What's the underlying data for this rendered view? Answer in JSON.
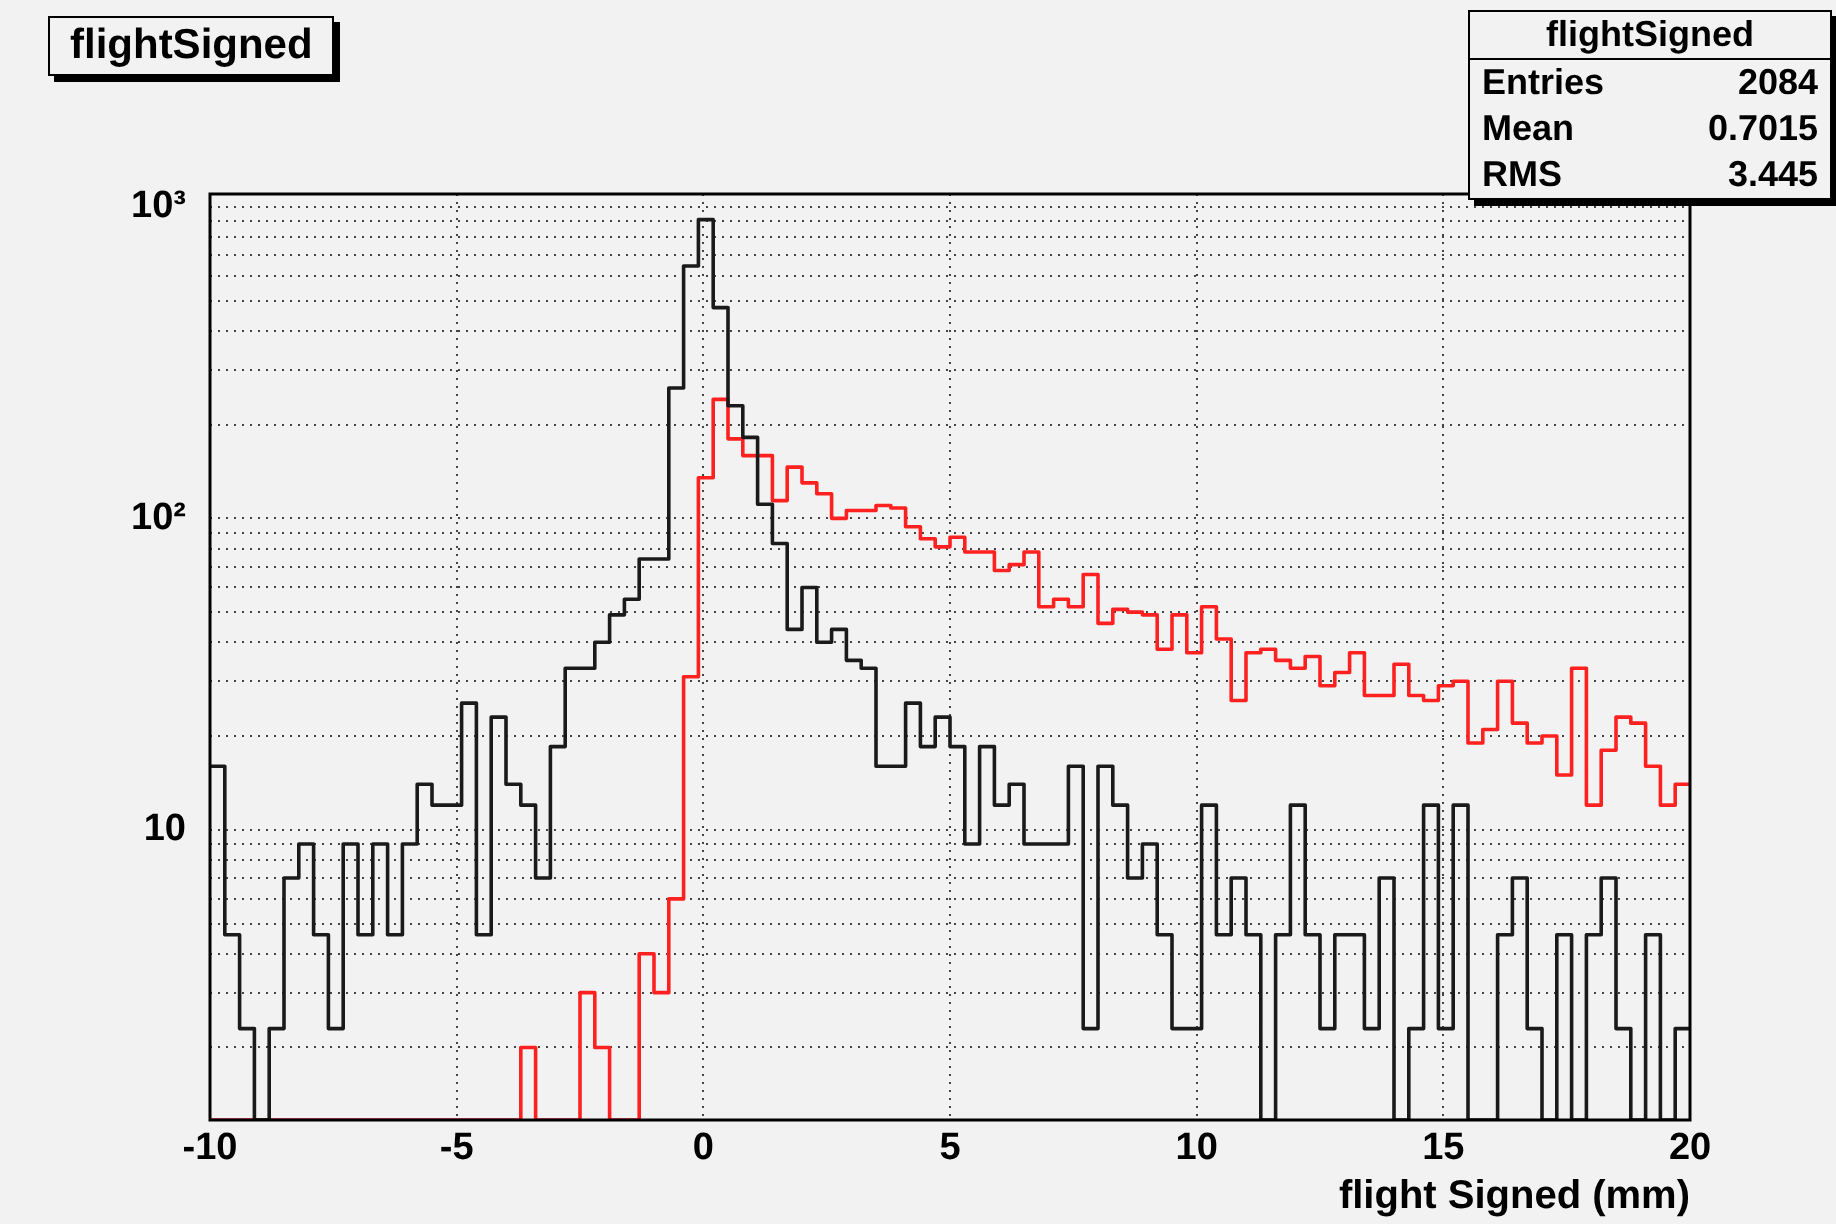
{
  "chart_data": {
    "type": "histogram",
    "title": "flightSigned",
    "xlabel": "flight Signed (mm)",
    "annotations": [
      "flightSigned",
      "Entries 2084",
      "Mean 0.7015",
      "RMS 3.445"
    ],
    "bins": [
      -10,
      -9.7,
      -9.4,
      -9.1,
      -8.8,
      -8.5,
      -8.2,
      -7.9,
      -7.6,
      -7.3,
      -7,
      -6.7,
      -6.4,
      -6.1,
      -5.8,
      -5.5,
      -5.2,
      -4.9,
      -4.6,
      -4.3,
      -4,
      -3.7,
      -3.4,
      -3.1,
      -2.8,
      -2.5,
      -2.2,
      -1.9,
      -1.6,
      -1.3,
      -1,
      -0.7,
      -0.4,
      -0.1,
      0.2,
      0.5,
      0.8,
      1.1,
      1.4,
      1.7,
      2,
      2.3,
      2.6,
      2.9,
      3.2,
      3.5,
      3.8,
      4.1,
      4.4,
      4.7,
      5,
      5.3,
      5.6,
      5.9,
      6.2,
      6.5,
      6.8,
      7.1,
      7.4,
      7.7,
      8,
      8.3,
      8.6,
      8.9,
      9.2,
      9.5,
      9.8,
      10.1,
      10.4,
      10.7,
      11,
      11.3,
      11.6,
      11.9,
      12.2,
      12.5,
      12.8,
      13.1,
      13.4,
      13.7,
      14,
      14.3,
      14.6,
      14.9,
      15.2,
      15.5,
      15.8,
      16.1,
      16.4,
      16.7,
      17,
      17.3,
      17.6,
      17.9,
      18.2,
      18.5,
      18.8,
      19.1,
      19.4,
      19.7,
      20
    ],
    "series": [
      {
        "color": "#1a1a1a",
        "values": [
          16,
          4.6,
          2.3,
          null,
          2.3,
          7,
          9,
          4.6,
          2.3,
          9,
          4.6,
          9,
          4.6,
          9,
          14,
          12,
          12,
          25.5,
          4.6,
          23,
          14,
          12,
          7,
          18.5,
          33,
          33,
          40,
          49,
          55,
          74,
          74,
          262,
          646,
          910,
          475,
          230,
          182,
          111,
          83,
          44,
          60,
          40,
          44,
          35,
          33,
          16,
          16,
          25.5,
          18.5,
          23,
          18.5,
          9,
          18.5,
          12,
          14,
          9,
          9,
          9,
          16,
          2.3,
          16,
          12,
          7,
          9,
          4.6,
          2.3,
          2.3,
          12,
          4.6,
          7,
          4.6,
          null,
          4.6,
          12,
          4.6,
          2.3,
          4.6,
          4.6,
          2.3,
          7,
          null,
          2.3,
          12,
          2.3,
          12,
          null,
          null,
          4.6,
          7,
          2.3,
          null,
          4.6,
          null,
          4.6,
          7,
          2.3,
          null,
          4.6,
          null,
          2.3
        ]
      },
      {
        "color": "#ff2020",
        "values": [
          null,
          null,
          null,
          null,
          null,
          null,
          null,
          null,
          null,
          null,
          null,
          null,
          null,
          null,
          null,
          null,
          null,
          null,
          null,
          null,
          null,
          2,
          null,
          null,
          null,
          3,
          2,
          null,
          null,
          4,
          3,
          6,
          31,
          135,
          241,
          180,
          159,
          159,
          114,
          146,
          130,
          120,
          100,
          106,
          106,
          110,
          108,
          94,
          86,
          81,
          87,
          78,
          78,
          68,
          71,
          78,
          52,
          55,
          52,
          66,
          46,
          51,
          50,
          49,
          38,
          49,
          37,
          52,
          41,
          26,
          37,
          38,
          35,
          33,
          36,
          29,
          32,
          37,
          27,
          27,
          34,
          27,
          26,
          29,
          30,
          19,
          21,
          30,
          22,
          19,
          20,
          15,
          33,
          12,
          18,
          23,
          22,
          16,
          12,
          14
        ]
      }
    ],
    "xlim": [
      -10,
      20
    ],
    "xticks": [
      -10,
      -5,
      0,
      5,
      10,
      15,
      20
    ],
    "ylim": [
      1.17,
      1100
    ],
    "log": true,
    "grid": true,
    "yticks": [
      {
        "value": 2,
        "label": null
      },
      {
        "value": 3,
        "label": null
      },
      {
        "value": 4,
        "label": null
      },
      {
        "value": 5,
        "label": null
      },
      {
        "value": 6,
        "label": null
      },
      {
        "value": 7,
        "label": null
      },
      {
        "value": 8,
        "label": null
      },
      {
        "value": 9,
        "label": null
      },
      10,
      {
        "value": 20,
        "label": null
      },
      {
        "value": 30,
        "label": null
      },
      {
        "value": 40,
        "label": null
      },
      {
        "value": 50,
        "label": null
      },
      {
        "value": 60,
        "label": null
      },
      {
        "value": 70,
        "label": null
      },
      {
        "value": 80,
        "label": null
      },
      {
        "value": 90,
        "label": null
      },
      {
        "value": 100,
        "label": "10²"
      },
      {
        "value": 200,
        "label": null
      },
      {
        "value": 300,
        "label": null
      },
      {
        "value": 400,
        "label": null
      },
      {
        "value": 500,
        "label": null
      },
      {
        "value": 600,
        "label": null
      },
      {
        "value": 700,
        "label": null
      },
      {
        "value": 800,
        "label": null
      },
      {
        "value": 900,
        "label": null
      },
      {
        "value": 1000,
        "label": "10³"
      }
    ]
  }
}
